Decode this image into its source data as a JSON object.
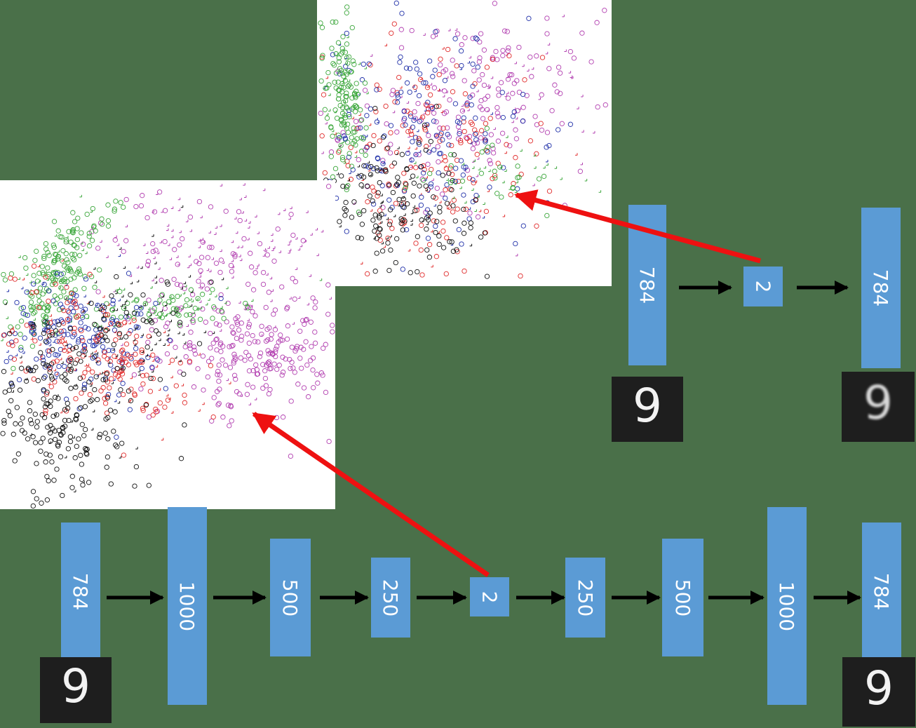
{
  "shallow_autoencoder": {
    "layers": [
      "784",
      "2",
      "784"
    ],
    "input_digit": "9",
    "output_digit": "9"
  },
  "deep_autoencoder": {
    "layers": [
      "784",
      "1000",
      "500",
      "250",
      "2",
      "250",
      "500",
      "1000",
      "784"
    ],
    "input_digit": "9",
    "output_digit": "9"
  },
  "colors": {
    "background": "#4a7049",
    "layer_box": "#5b9bd5",
    "arrow": "#000000",
    "pointer": "#ee1111",
    "scatter_classes": [
      "#3aa63a",
      "#1f2fa8",
      "#e02a2a",
      "#111111",
      "#b23fb0"
    ]
  },
  "icons": [
    "circle-marker-icon",
    "plus-marker-icon",
    "arrow-icon"
  ]
}
